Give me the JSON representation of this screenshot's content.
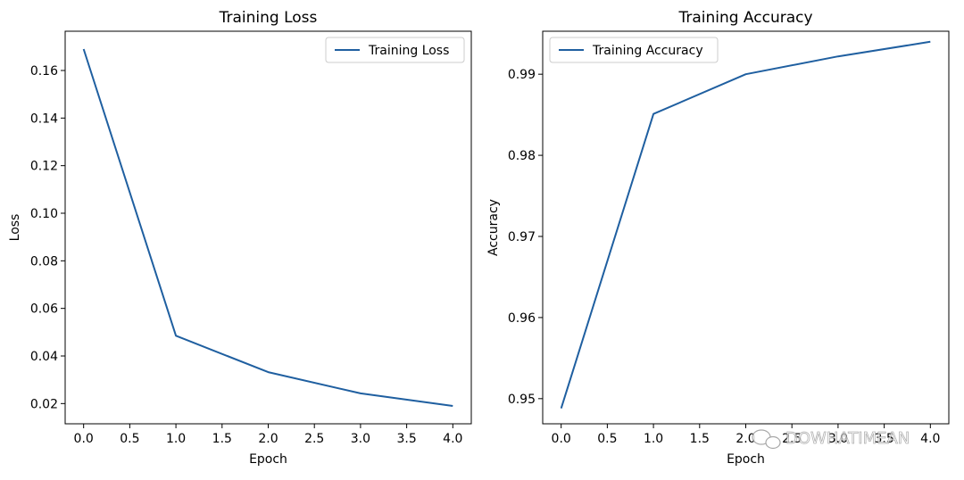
{
  "colors": {
    "series": "#1f5fa0",
    "frame": "#000000"
  },
  "watermark": {
    "text": "DOWHATIMEAN",
    "icon": "chat-bubble-icon"
  },
  "chart_data": [
    {
      "type": "line",
      "title": "Training Loss",
      "xlabel": "Epoch",
      "ylabel": "Loss",
      "xlim": [
        -0.2,
        4.2
      ],
      "ylim": [
        0.0115,
        0.1765
      ],
      "xticks": [
        0.0,
        0.5,
        1.0,
        1.5,
        2.0,
        2.5,
        3.0,
        3.5,
        4.0
      ],
      "xtick_labels": [
        "0.0",
        "0.5",
        "1.0",
        "1.5",
        "2.0",
        "2.5",
        "3.0",
        "3.5",
        "4.0"
      ],
      "yticks": [
        0.02,
        0.04,
        0.06,
        0.08,
        0.1,
        0.12,
        0.14,
        0.16
      ],
      "ytick_labels": [
        "0.02",
        "0.04",
        "0.06",
        "0.08",
        "0.10",
        "0.12",
        "0.14",
        "0.16"
      ],
      "legend_position": "upper-right",
      "grid": false,
      "series": [
        {
          "name": "Training Loss",
          "x": [
            0,
            1,
            2,
            3,
            4
          ],
          "y": [
            0.169,
            0.0485,
            0.0332,
            0.0243,
            0.019
          ]
        }
      ]
    },
    {
      "type": "line",
      "title": "Training Accuracy",
      "xlabel": "Epoch",
      "ylabel": "Accuracy",
      "xlim": [
        -0.2,
        4.2
      ],
      "ylim": [
        0.9469,
        0.9953
      ],
      "xticks": [
        0.0,
        0.5,
        1.0,
        1.5,
        2.0,
        2.5,
        3.0,
        3.5,
        4.0
      ],
      "xtick_labels": [
        "0.0",
        "0.5",
        "1.0",
        "1.5",
        "2.0",
        "2.5",
        "3.0",
        "3.5",
        "4.0"
      ],
      "yticks": [
        0.95,
        0.96,
        0.97,
        0.98,
        0.99
      ],
      "ytick_labels": [
        "0.95",
        "0.96",
        "0.97",
        "0.98",
        "0.99"
      ],
      "legend_position": "upper-left",
      "grid": false,
      "series": [
        {
          "name": "Training Accuracy",
          "x": [
            0,
            1,
            2,
            3,
            4
          ],
          "y": [
            0.9488,
            0.9851,
            0.99,
            0.9922,
            0.994
          ]
        }
      ]
    }
  ]
}
